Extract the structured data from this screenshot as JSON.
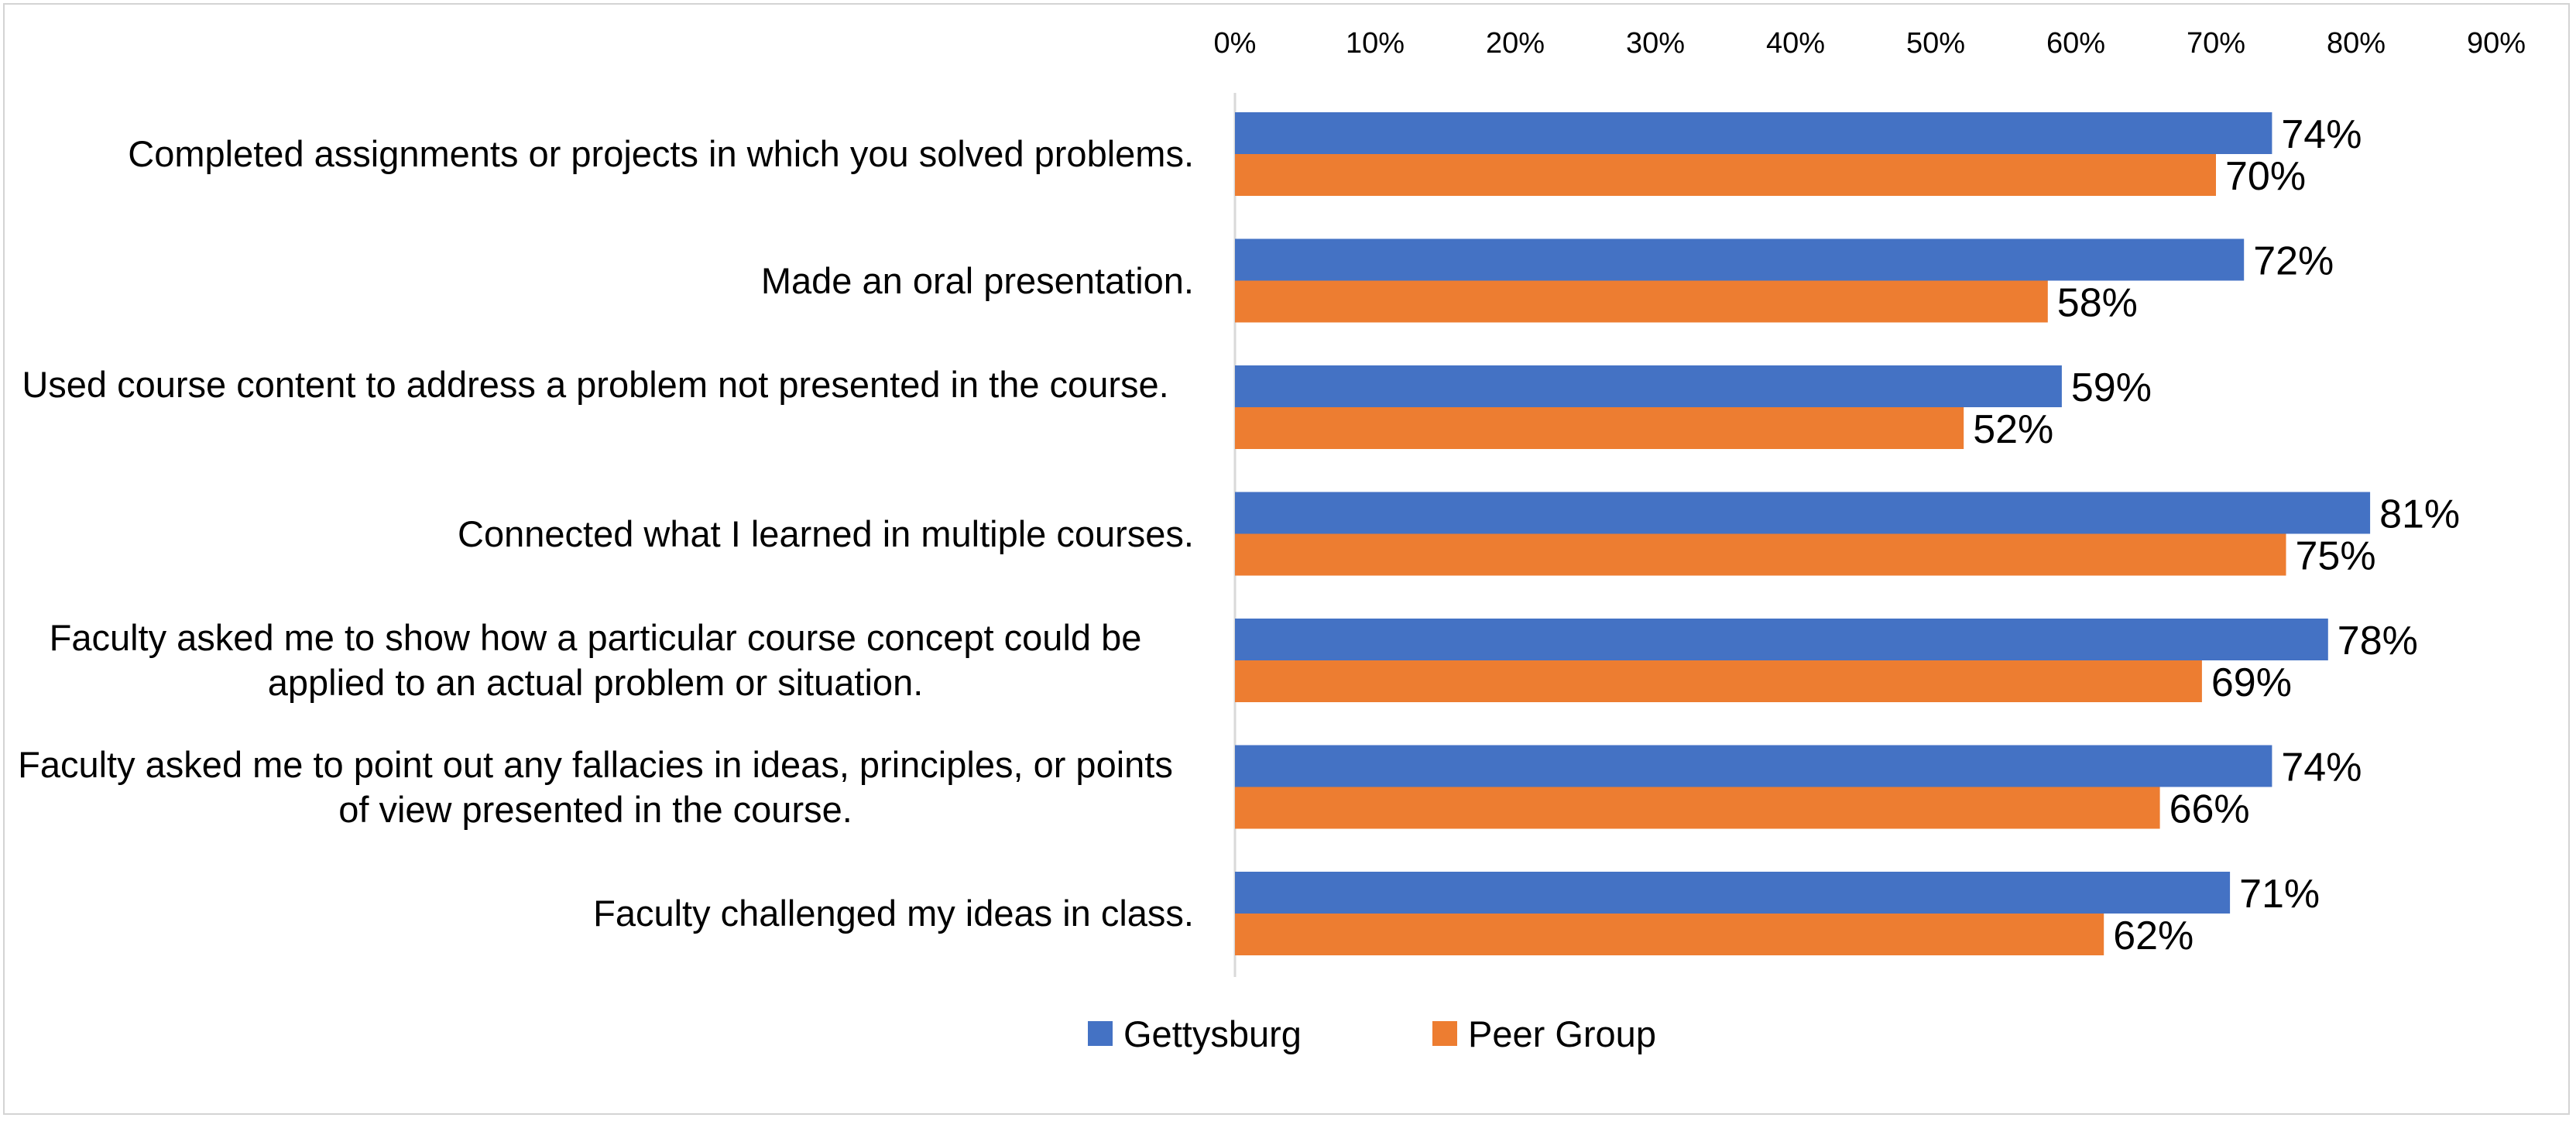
{
  "chart_data": {
    "type": "bar",
    "orientation": "horizontal",
    "title": "",
    "xlabel": "",
    "ylabel": "",
    "xlim": [
      0,
      90
    ],
    "x_ticks": [
      "0%",
      "10%",
      "20%",
      "30%",
      "40%",
      "50%",
      "60%",
      "70%",
      "80%",
      "90%"
    ],
    "x_axis_position": "top",
    "grid": false,
    "legend_position": "bottom",
    "categories": [
      "Completed assignments or projects in which you solved problems.",
      "Made an oral presentation.",
      "Used course content to address a problem not presented in the course.",
      "Connected what I learned in multiple courses.",
      "Faculty asked me to show how a particular course concept could be applied to an actual problem or situation.",
      "Faculty asked me to point out any fallacies in ideas, principles, or points of view presented in the course.",
      "Faculty challenged my ideas in class."
    ],
    "series": [
      {
        "name": "Gettysburg",
        "color": "#4472C4",
        "values": [
          74,
          72,
          59,
          81,
          78,
          74,
          71
        ],
        "labels": [
          "74%",
          "72%",
          "59%",
          "81%",
          "78%",
          "74%",
          "71%"
        ]
      },
      {
        "name": "Peer Group",
        "color": "#ED7D31",
        "values": [
          70,
          58,
          52,
          75,
          69,
          66,
          62
        ],
        "labels": [
          "70%",
          "58%",
          "52%",
          "75%",
          "69%",
          "66%",
          "62%"
        ]
      }
    ]
  }
}
